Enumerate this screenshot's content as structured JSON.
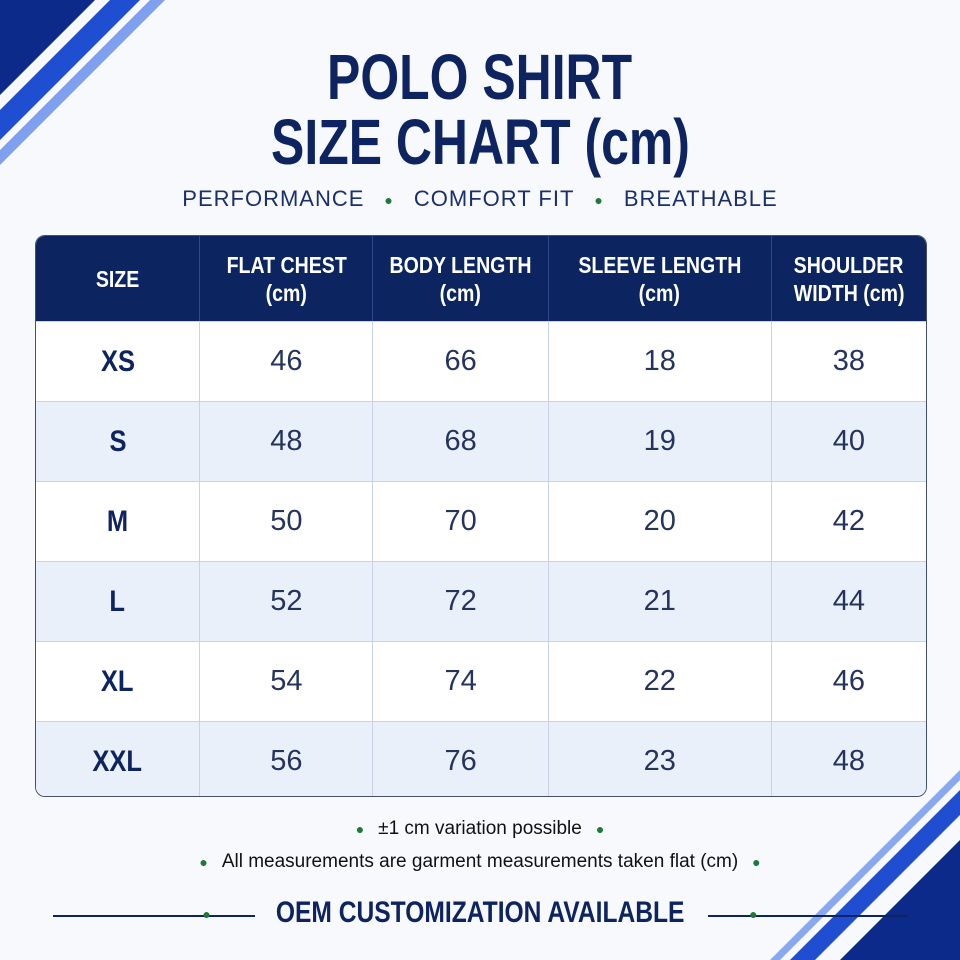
{
  "header": {
    "title_lines": [
      "POLO SHIRT",
      "SIZE CHART (cm)"
    ],
    "taglines": [
      "PERFORMANCE",
      "COMFORT FIT",
      "BREATHABLE"
    ]
  },
  "table": {
    "columns": [
      [
        "SIZE"
      ],
      [
        "FLAT CHEST",
        "(cm)"
      ],
      [
        "BODY LENGTH",
        "(cm)"
      ],
      [
        "SLEEVE LENGTH",
        "(cm)"
      ],
      [
        "SHOULDER",
        "WIDTH (cm)"
      ]
    ],
    "rows": [
      [
        "XS",
        46,
        66,
        18,
        38
      ],
      [
        "S",
        48,
        68,
        19,
        40
      ],
      [
        "M",
        50,
        70,
        20,
        42
      ],
      [
        "L",
        52,
        72,
        21,
        44
      ],
      [
        "XL",
        54,
        74,
        22,
        46
      ],
      [
        "XXL",
        56,
        76,
        23,
        48
      ]
    ]
  },
  "notes": [
    "±1 cm variation possible",
    "All measurements are garment measurements taken flat (cm)"
  ],
  "footer": "OEM CUSTOMIZATION AVAILABLE"
}
